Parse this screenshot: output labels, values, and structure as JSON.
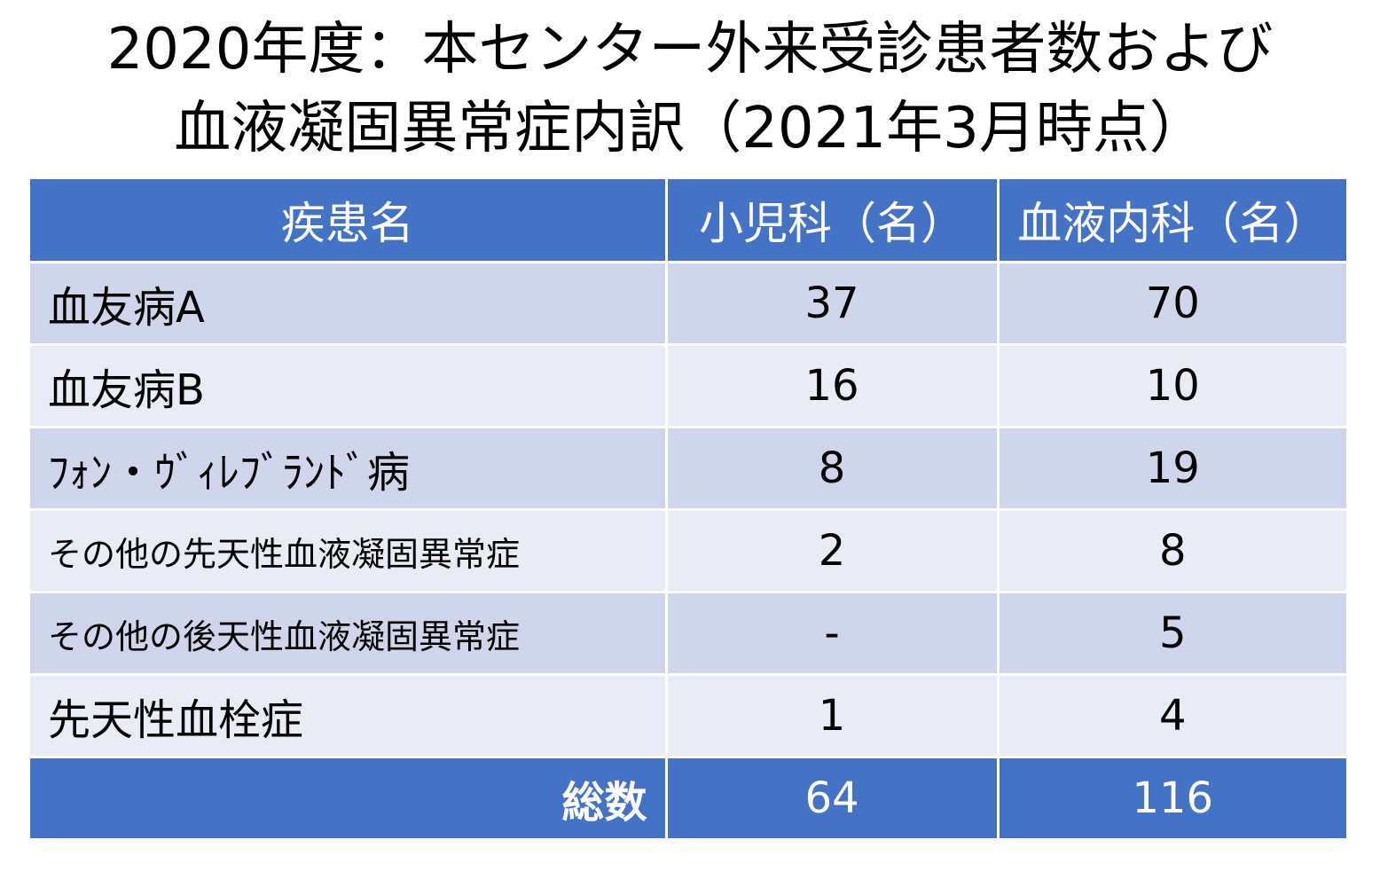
{
  "title": {
    "line1": "2020年度：本センター外来受診患者数および",
    "line2": "血液凝固異常症内訳（2021年3月時点）"
  },
  "table": {
    "headers": [
      "疾患名",
      "小児科（名）",
      "血液内科（名）"
    ],
    "rows": [
      {
        "name": "血友病A",
        "pediatrics": "37",
        "hematology": "70"
      },
      {
        "name": "血友病B",
        "pediatrics": "16",
        "hematology": "10"
      },
      {
        "name": "ﾌｫﾝ・ｳﾞｨﾚﾌﾞﾗﾝﾄﾞ病",
        "pediatrics": "8",
        "hematology": "19"
      },
      {
        "name": "その他の先天性血液凝固異常症",
        "pediatrics": "2",
        "hematology": "8"
      },
      {
        "name": "その他の後天性血液凝固異常症",
        "pediatrics": "-",
        "hematology": "5"
      },
      {
        "name": "先天性血栓症",
        "pediatrics": "1",
        "hematology": "4"
      }
    ],
    "total": {
      "label": "総数",
      "pediatrics": "64",
      "hematology": "116"
    }
  },
  "colors": {
    "header_bg": "#4472c4",
    "row_dark": "#cfd5ea",
    "row_light": "#e9ebf5",
    "header_text": "#ffffff"
  }
}
